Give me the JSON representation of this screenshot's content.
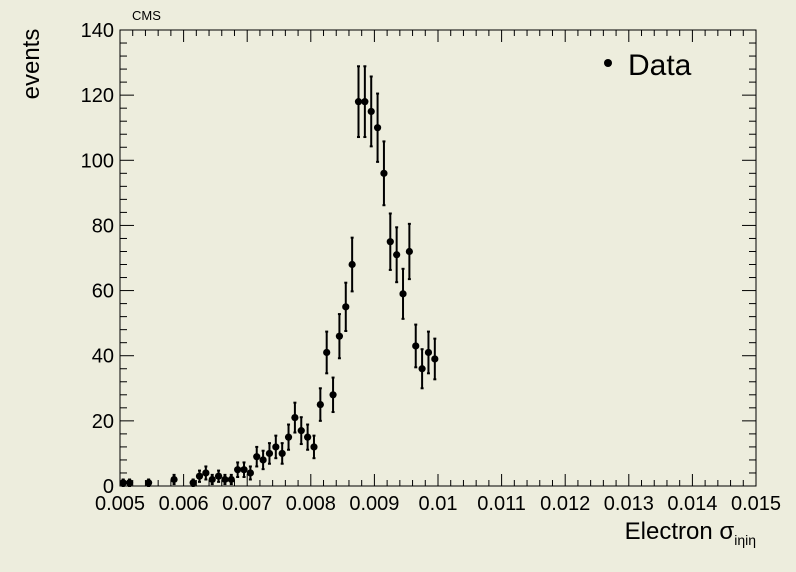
{
  "chart_data": {
    "type": "scatter",
    "watermark": "CMS",
    "xlabel": "Electron",
    "xlabel_symbol": "σ",
    "xlabel_subscript": "iηiη",
    "ylabel": "events",
    "xlim": [
      0.005,
      0.015
    ],
    "ylim": [
      0,
      140
    ],
    "xticks": [
      "0.005",
      "0.006",
      "0.007",
      "0.008",
      "0.009",
      "0.01",
      "0.011",
      "0.012",
      "0.013",
      "0.014",
      "0.015"
    ],
    "yticks": [
      "0",
      "20",
      "40",
      "60",
      "80",
      "100",
      "120",
      "140"
    ],
    "legend": {
      "label": "Data",
      "position": "top-right"
    },
    "series": [
      {
        "name": "Data",
        "error_bars": "poisson sqrt(N)",
        "x": [
          0.00505,
          0.00515,
          0.00545,
          0.00585,
          0.00615,
          0.00625,
          0.00635,
          0.00645,
          0.00655,
          0.00665,
          0.00675,
          0.00685,
          0.00695,
          0.00705,
          0.00715,
          0.00725,
          0.00735,
          0.00745,
          0.00755,
          0.00765,
          0.00775,
          0.00785,
          0.00795,
          0.00805,
          0.00815,
          0.00825,
          0.00835,
          0.00845,
          0.00855,
          0.00865,
          0.00875,
          0.00885,
          0.00895,
          0.00905,
          0.00915,
          0.00925,
          0.00935,
          0.00945,
          0.00955,
          0.00965,
          0.00975,
          0.00985,
          0.00995
        ],
        "y": [
          1,
          1,
          1,
          2,
          1,
          3,
          4,
          2,
          3,
          2,
          2,
          5,
          5,
          4,
          9,
          8,
          10,
          12,
          10,
          15,
          21,
          17,
          15,
          12,
          25,
          41,
          28,
          46,
          55,
          68,
          118,
          118,
          115,
          110,
          96,
          75,
          71,
          59,
          72,
          43,
          36,
          41,
          39
        ]
      }
    ]
  }
}
